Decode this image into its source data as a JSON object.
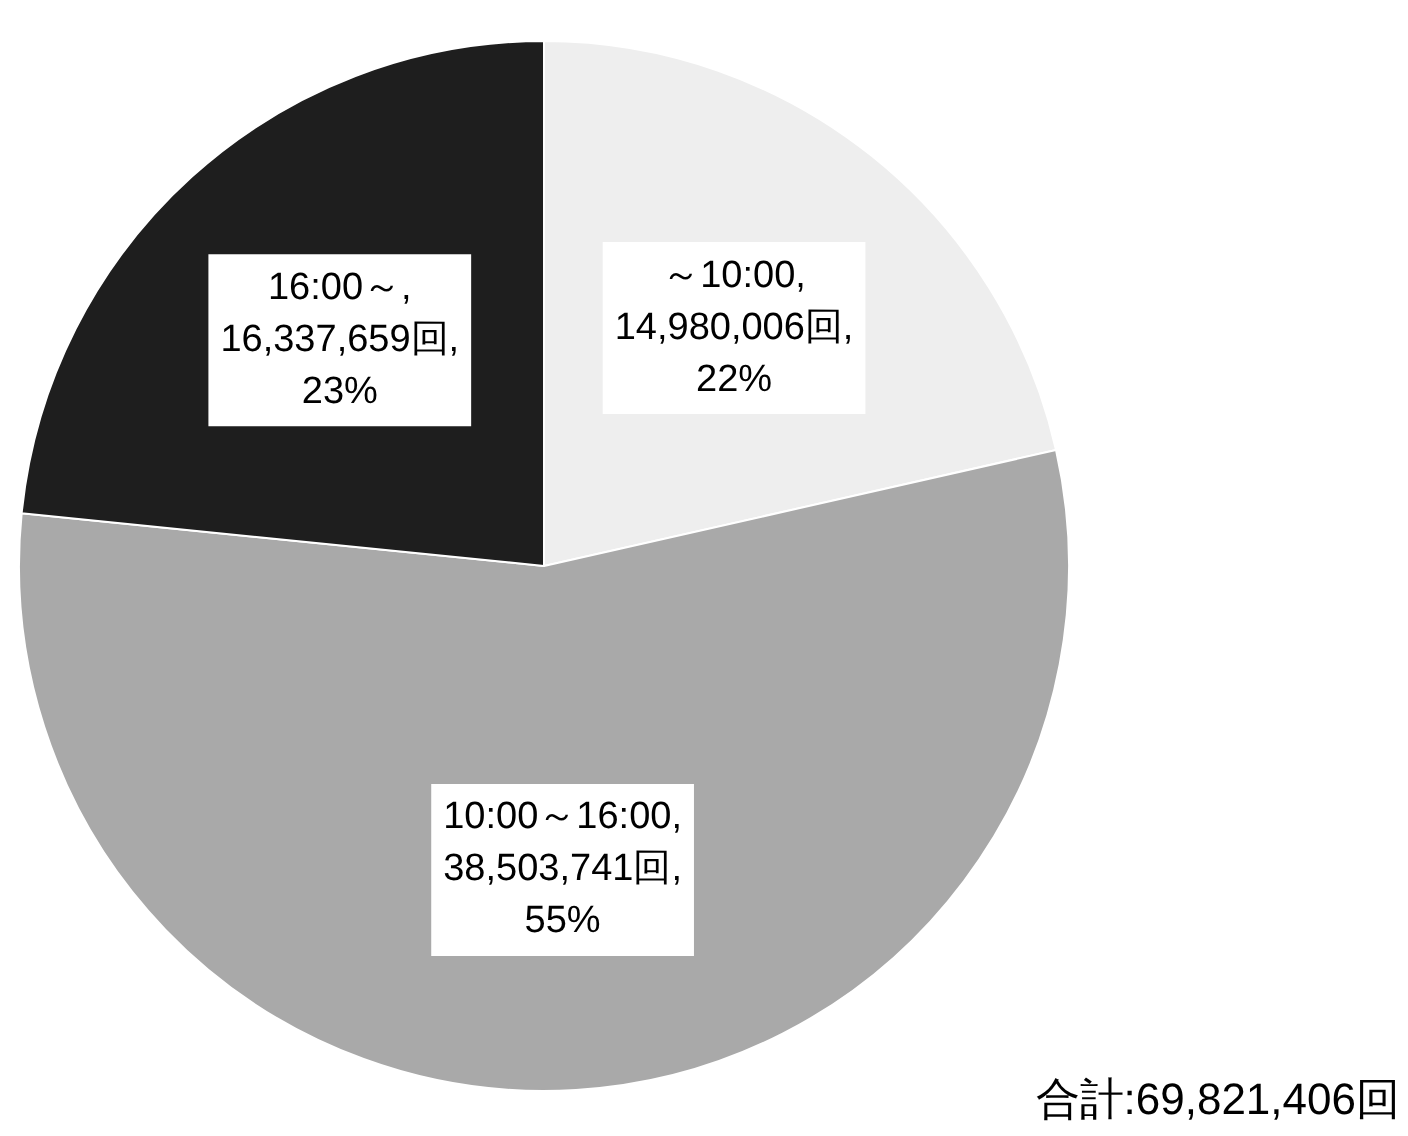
{
  "chart_data": {
    "type": "pie",
    "categories": [
      "～10:00",
      "10:00～16:00",
      "16:00～"
    ],
    "values": [
      14980006,
      38503741,
      16337659
    ],
    "colors": [
      "#eeeeee",
      "#a9a9a9",
      "#1e1e1e"
    ],
    "value_labels": [
      ",\n14,980,006回,\n22%",
      ",\n38,503,741回,\n55%",
      ",\n16,337,659回,\n23%"
    ],
    "legend": false,
    "annotations": [
      "合計:69,821,406回"
    ]
  }
}
